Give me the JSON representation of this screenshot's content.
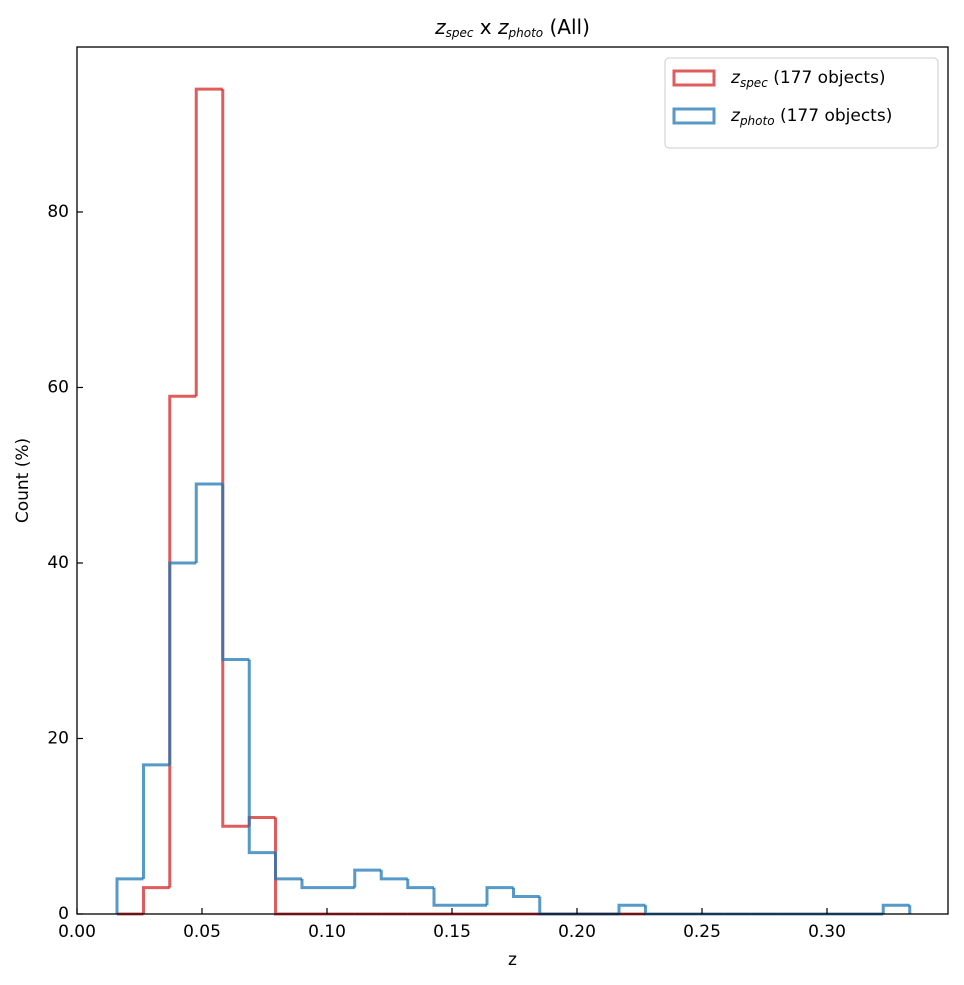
{
  "chart_data": {
    "type": "histogram-step",
    "title": "z_{spec} x z_{photo} (All)",
    "xlabel": "z",
    "ylabel": "Count (%)",
    "xlim": [
      0,
      0.3484
    ],
    "ylim": [
      0,
      98.8
    ],
    "xticks": [
      {
        "value": 0,
        "label": "0.00"
      },
      {
        "value": 0.05,
        "label": "0.05"
      },
      {
        "value": 0.1,
        "label": "0.10"
      },
      {
        "value": 0.15,
        "label": "0.15"
      },
      {
        "value": 0.2,
        "label": "0.20"
      },
      {
        "value": 0.25,
        "label": "0.25"
      },
      {
        "value": 0.3,
        "label": "0.30"
      }
    ],
    "yticks": [
      0,
      20,
      40,
      60,
      80
    ],
    "legend": "upper right",
    "series": [
      {
        "name": "z_{spec} (177 objects)",
        "color": "#d62728",
        "bins": [
          0.016,
          0.0266,
          0.0371,
          0.0477,
          0.0583,
          0.0689,
          0.0794,
          0.09,
          0.1006,
          0.1111,
          0.1217,
          0.1323,
          0.1428,
          0.1534,
          0.164,
          0.1746,
          0.1851,
          0.1957,
          0.2063,
          0.2168,
          0.2274
        ],
        "values": [
          0,
          3,
          59,
          94,
          10,
          11,
          0,
          0,
          0,
          0,
          0,
          0,
          0,
          0,
          0,
          0,
          0,
          0,
          0,
          0
        ]
      },
      {
        "name": "z_{photo} (177 objects)",
        "color": "#1f77b4",
        "bins": [
          0.016,
          0.0266,
          0.0371,
          0.0477,
          0.0583,
          0.0689,
          0.0794,
          0.09,
          0.1006,
          0.1111,
          0.1217,
          0.1323,
          0.1428,
          0.1534,
          0.164,
          0.1746,
          0.1851,
          0.1957,
          0.2063,
          0.2168,
          0.2274,
          0.238,
          0.2485,
          0.2591,
          0.2697,
          0.2803,
          0.2908,
          0.3014,
          0.312,
          0.3225,
          0.3331
        ],
        "values": [
          4,
          17,
          40,
          49,
          29,
          7,
          4,
          3,
          3,
          5,
          4,
          3,
          1,
          1,
          3,
          2,
          0,
          0,
          0,
          1,
          0,
          0,
          0,
          0,
          0,
          0,
          0,
          0,
          0,
          1
        ]
      }
    ]
  }
}
